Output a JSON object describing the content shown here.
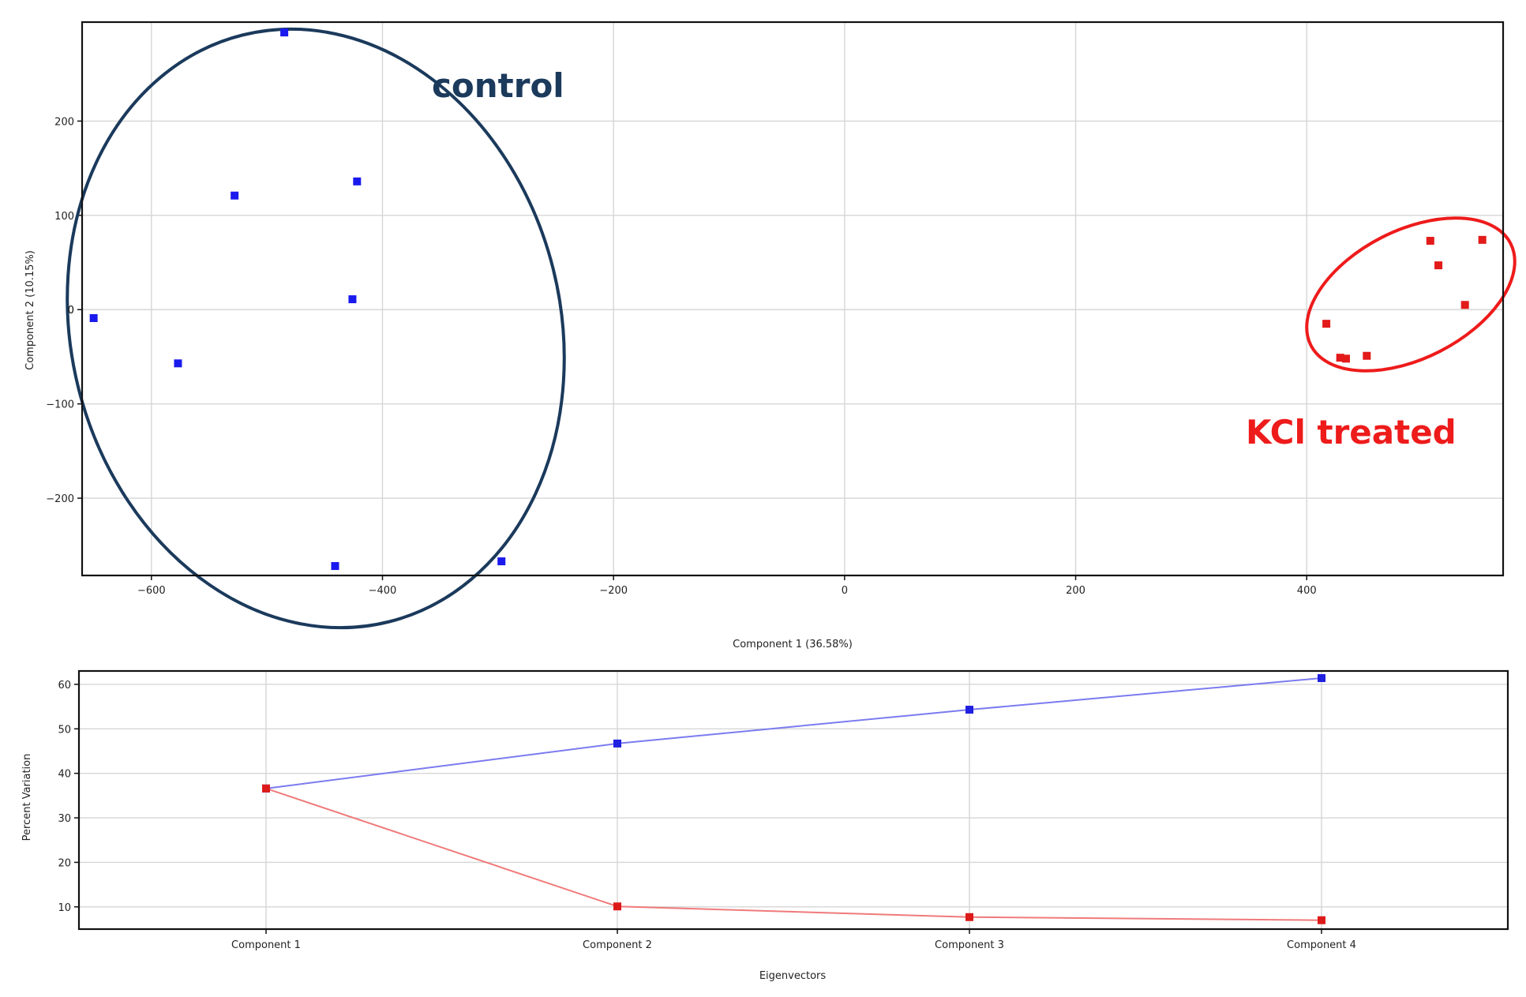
{
  "chart_data": [
    {
      "type": "scatter",
      "xlabel": "Component 1 (36.58%)",
      "ylabel": "Component 2 (10.15%)",
      "xlim": [
        -660,
        570
      ],
      "ylim": [
        -282,
        305
      ],
      "x_ticks": [
        -600,
        -400,
        -200,
        0,
        200,
        400
      ],
      "y_ticks": [
        -200,
        -100,
        0,
        100,
        200
      ],
      "grid": true,
      "series": [
        {
          "color": "#1a1aee",
          "points": [
            [
              -485,
              294
            ],
            [
              -422,
              136
            ],
            [
              -528,
              121
            ],
            [
              -426,
              11
            ],
            [
              -650,
              -9
            ],
            [
              -577,
              -57
            ],
            [
              -441,
              -272
            ],
            [
              -297,
              -267
            ]
          ]
        },
        {
          "color": "#e31a1a",
          "points": [
            [
              507,
              73
            ],
            [
              552,
              74
            ],
            [
              514,
              47
            ],
            [
              537,
              5
            ],
            [
              417,
              -15
            ],
            [
              429,
              -51
            ],
            [
              434,
              -52
            ],
            [
              452,
              -49
            ]
          ]
        }
      ],
      "annotations": [
        {
          "text": "control",
          "color": "#1b3a5c"
        },
        {
          "text": "KCl treated",
          "color": "#ee1b1b"
        }
      ]
    },
    {
      "type": "line",
      "xlabel": "Eigenvectors",
      "ylabel": "Percent Variation",
      "categories": [
        "Component 1",
        "Component 2",
        "Component 3",
        "Component 4"
      ],
      "ylim": [
        5,
        63
      ],
      "y_ticks": [
        10,
        20,
        30,
        40,
        50,
        60
      ],
      "grid": true,
      "series": [
        {
          "color": "#2020e0",
          "line_color": "#7b7bf0",
          "values": [
            36.6,
            46.7,
            54.3,
            61.4
          ]
        },
        {
          "color": "#dd1a1a",
          "line_color": "#f07a7a",
          "values": [
            36.6,
            10.1,
            7.7,
            7.0
          ]
        }
      ]
    }
  ]
}
